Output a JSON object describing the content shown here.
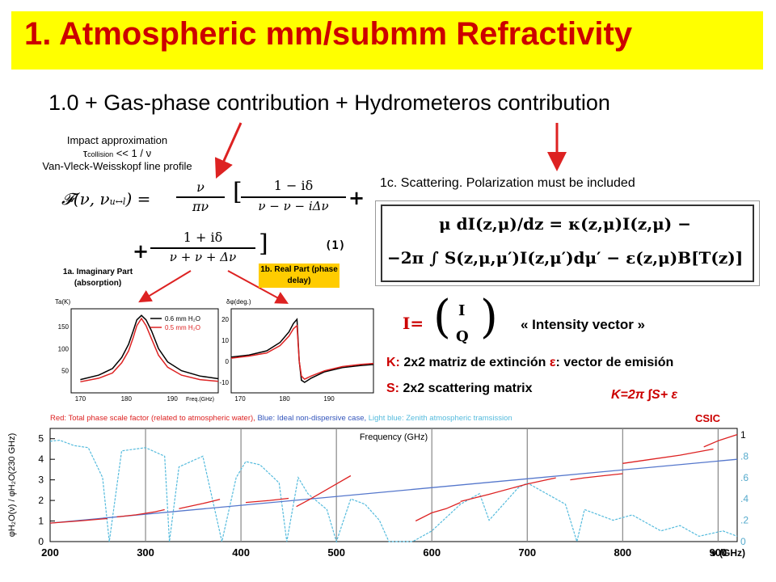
{
  "slide": {
    "title": "1. Atmospheric mm/submm Refractivity",
    "subtitle": "1.0 + Gas-phase contribution + Hydrometeros contribution",
    "impact": {
      "line1": "Impact approximation",
      "tau": "τ",
      "collision": "collision",
      "rest": "<< 1 / ν",
      "line3": "Van-Vleck-Weisskopf line profile"
    },
    "vvw_formula": {
      "F": "𝓕(ν, ν",
      "sub": "u↔l",
      "eq": ") =",
      "nu_num": "ν",
      "pi_den": "πν",
      "one_minus": "1 − iδ",
      "den1": "ν",
      "den1b": "− ν − iΔν",
      "one_plus": "1 + iδ",
      "den2": "ν",
      "den2b": "+ ν + Δν",
      "plus": "+",
      "eqnum": "(1)"
    },
    "labels": {
      "imag": "1a. Imaginary Part (absorption)",
      "real": "1b. Real Part (phase delay)",
      "scattering": "1c. Scattering. Polarization must be included"
    },
    "rte": {
      "line1": "μ dI(z,μ)/dz = κ(z,μ)I(z,μ) −",
      "line2": "−2π ∫ S(z,μ,μ′)I(z,μ′)dμ′ − ε(z,μ)B[T(z)]"
    },
    "stokes": {
      "I_eq": "I=",
      "I": "I",
      "Q": "Q",
      "desc": "« Intensity vector »"
    },
    "defs": {
      "K_prefix": "K:",
      "K_text": " 2x2 matriz de extinción ",
      "eps": "ε",
      "eps_text": ": vector de emisión",
      "S_prefix": "S:",
      "S_text": " 2x2 scattering matrix",
      "K_formula": "K=2π ∫S+ ε"
    },
    "small_plot_a": {
      "ylabel": "Ta(K)",
      "legend1": "0.6 mm H₂O",
      "legend2": "0.5 mm H₂O",
      "xlabel": "Freq.(GHz)",
      "yticks": [
        "150",
        "100",
        "50"
      ],
      "xticks": [
        "170",
        "180",
        "190"
      ]
    },
    "small_plot_b": {
      "ylabel": "δφ(deg.)",
      "yticks": [
        "20",
        "10",
        "0",
        "-10"
      ],
      "xticks": [
        "170",
        "180",
        "190"
      ]
    },
    "big_chart": {
      "caption_red": "Red: Total phase scale factor (related to atmospheric water),",
      "caption_blue": " Blue: Ideal non-dispersive case,",
      "caption_lightblue": " Light blue: Zenith atmospheric tramsission",
      "logo": "CSIC",
      "xlabel": "ν (GHz)",
      "xtitle": "Frequency (GHz)",
      "ylabel": "φH₂O(ν) / φH₂O(230 GHz)"
    },
    "colors": {
      "title": "#cc0000",
      "title_bg": "#ffff00",
      "red": "#dd2222",
      "blue": "#5577cc",
      "lightblue": "#55bbdd"
    }
  },
  "chart_data": [
    {
      "type": "line",
      "title": "",
      "xlabel": "ν (GHz)",
      "ylabel": "φH₂O(ν) / φH₂O(230 GHz)",
      "xlim": [
        200,
        920
      ],
      "ylim": [
        0,
        5.5
      ],
      "xticks": [
        200,
        300,
        400,
        500,
        600,
        700,
        800,
        900
      ],
      "yticks": [
        0,
        1,
        2,
        3,
        4,
        5
      ],
      "y2ticks": [
        "0",
        ".2",
        ".4",
        ".6",
        ".8",
        "1"
      ],
      "grid": true,
      "series": [
        {
          "name": "Red: Total phase scale factor (related to atmospheric water)",
          "color": "#dd2222",
          "segments": [
            {
              "x": [
                200,
                230,
                260
              ],
              "y": [
                0.9,
                1.0,
                1.12
              ]
            },
            {
              "x": [
                270,
                290,
                310,
                320
              ],
              "y": [
                1.2,
                1.3,
                1.45,
                1.55
              ]
            },
            {
              "x": [
                335,
                360,
                378
              ],
              "y": [
                1.6,
                1.85,
                2.05
              ]
            },
            {
              "x": [
                405,
                430,
                450
              ],
              "y": [
                1.9,
                2.0,
                2.1
              ]
            },
            {
              "x": [
                458,
                470,
                485,
                500,
                515
              ],
              "y": [
                1.7,
                2.0,
                2.4,
                2.8,
                3.2
              ]
            },
            {
              "x": [
                583,
                600,
                615,
                630
              ],
              "y": [
                1.0,
                1.4,
                1.6,
                1.9
              ]
            },
            {
              "x": [
                630,
                660,
                700,
                730
              ],
              "y": [
                1.95,
                2.3,
                2.8,
                3.1
              ]
            },
            {
              "x": [
                745,
                760,
                780,
                800
              ],
              "y": [
                3.0,
                3.1,
                3.2,
                3.3
              ]
            },
            {
              "x": [
                800,
                830,
                860,
                895
              ],
              "y": [
                3.8,
                4.0,
                4.2,
                4.5
              ]
            },
            {
              "x": [
                885,
                900,
                920
              ],
              "y": [
                4.6,
                4.9,
                5.2
              ]
            }
          ]
        },
        {
          "name": "Blue: Ideal non-dispersive case",
          "color": "#5577cc",
          "x": [
            200,
            920
          ],
          "y": [
            0.9,
            4.0
          ]
        },
        {
          "name": "Light blue: Zenith atmospheric tramsission",
          "color": "#55bbdd",
          "x": [
            200,
            210,
            225,
            240,
            255,
            262,
            275,
            300,
            320,
            325,
            335,
            360,
            375,
            380,
            395,
            405,
            420,
            440,
            448,
            460,
            470,
            490,
            500,
            515,
            530,
            545,
            555,
            565,
            580,
            600,
            630,
            650,
            660,
            690,
            700,
            720,
            740,
            752,
            760,
            790,
            810,
            840,
            860,
            880,
            905,
            920
          ],
          "y": [
            0.94,
            0.95,
            0.9,
            0.88,
            0.6,
            0.0,
            0.85,
            0.88,
            0.8,
            0.0,
            0.7,
            0.8,
            0.2,
            0.0,
            0.6,
            0.75,
            0.72,
            0.55,
            0.0,
            0.6,
            0.45,
            0.3,
            0.0,
            0.4,
            0.35,
            0.2,
            0.0,
            0.0,
            0.0,
            0.1,
            0.35,
            0.45,
            0.2,
            0.5,
            0.55,
            0.45,
            0.35,
            0.0,
            0.3,
            0.2,
            0.25,
            0.1,
            0.15,
            0.05,
            0.1,
            0.05
          ]
        }
      ]
    },
    {
      "type": "line",
      "title": "",
      "xlabel": "Freq.(GHz)",
      "ylabel": "Ta(K)",
      "xlim": [
        168,
        200
      ],
      "ylim": [
        0,
        190
      ],
      "series": [
        {
          "name": "0.6 mm H₂O",
          "color": "#000000",
          "x": [
            170,
            174,
            177,
            179,
            180.5,
            181.5,
            182.3,
            183.3,
            184.3,
            185.5,
            187,
            189,
            192,
            196,
            200
          ],
          "y": [
            30,
            40,
            55,
            80,
            110,
            140,
            165,
            175,
            165,
            140,
            100,
            70,
            50,
            38,
            32
          ]
        },
        {
          "name": "0.5 mm H₂O",
          "color": "#dd2222",
          "x": [
            170,
            174,
            177,
            179,
            180.5,
            181.5,
            182.3,
            183.3,
            184.3,
            185.5,
            187,
            189,
            192,
            196,
            200
          ],
          "y": [
            25,
            33,
            45,
            68,
            95,
            125,
            152,
            168,
            152,
            122,
            85,
            58,
            40,
            30,
            26
          ]
        }
      ]
    },
    {
      "type": "line",
      "title": "",
      "xlabel": "",
      "ylabel": "δφ(deg.)",
      "xlim": [
        168,
        200
      ],
      "ylim": [
        -15,
        25
      ],
      "series": [
        {
          "name": "0.6 mm H₂O",
          "color": "#000000",
          "x": [
            168,
            172,
            176,
            179,
            181,
            182,
            182.8,
            183.3,
            183.8,
            184.5,
            186,
            189,
            193,
            197,
            200
          ],
          "y": [
            2,
            3,
            5,
            9,
            14,
            18,
            20,
            0,
            -9,
            -10,
            -8,
            -5,
            -3,
            -2,
            -1.5
          ]
        },
        {
          "name": "0.5 mm H₂O",
          "color": "#dd2222",
          "x": [
            168,
            172,
            176,
            179,
            181,
            182,
            182.8,
            183.3,
            183.8,
            184.5,
            186,
            189,
            193,
            197,
            200
          ],
          "y": [
            1.5,
            2.5,
            4,
            7.5,
            12,
            15.5,
            17,
            0,
            -7,
            -8.5,
            -7,
            -4.5,
            -2.5,
            -1.5,
            -1
          ]
        }
      ]
    }
  ]
}
